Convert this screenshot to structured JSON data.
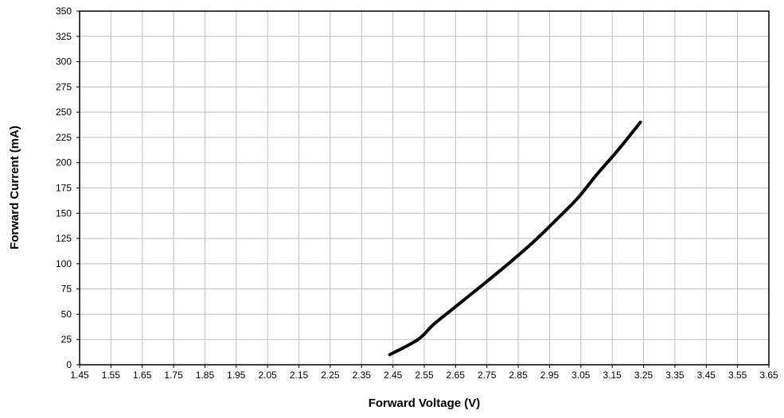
{
  "chart_data": {
    "type": "line",
    "title": "",
    "xlabel": "Forward Voltage (V)",
    "ylabel": "Forward Current (mA)",
    "xlim": [
      1.45,
      3.65
    ],
    "ylim": [
      0,
      350
    ],
    "x_ticks": [
      "1.45",
      "1.55",
      "1.65",
      "1.75",
      "1.85",
      "1.95",
      "2.05",
      "2.15",
      "2.25",
      "2.35",
      "2.45",
      "2.55",
      "2.65",
      "2.75",
      "2.85",
      "2.95",
      "3.05",
      "3.15",
      "3.25",
      "3.35",
      "3.45",
      "3.55",
      "3.65"
    ],
    "y_ticks": [
      "0",
      "25",
      "50",
      "75",
      "100",
      "125",
      "150",
      "175",
      "200",
      "225",
      "250",
      "275",
      "300",
      "325",
      "350"
    ],
    "grid": true,
    "legend": "none",
    "series": [
      {
        "color": "#000000",
        "x": [
          2.44,
          2.53,
          2.58,
          2.64,
          2.7,
          2.76,
          2.83,
          2.9,
          2.97,
          3.04,
          3.1,
          3.17,
          3.24
        ],
        "y": [
          10,
          25,
          40,
          55,
          70,
          85,
          103,
          122,
          143,
          165,
          188,
          213,
          240
        ]
      }
    ]
  }
}
